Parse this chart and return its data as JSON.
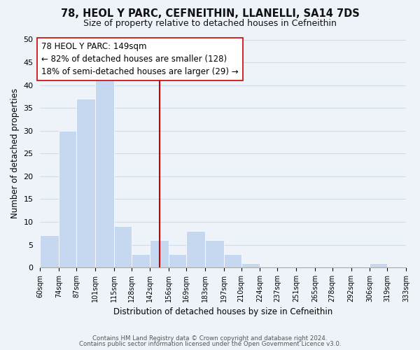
{
  "title": "78, HEOL Y PARC, CEFNEITHIN, LLANELLI, SA14 7DS",
  "subtitle": "Size of property relative to detached houses in Cefneithin",
  "xlabel": "Distribution of detached houses by size in Cefneithin",
  "ylabel": "Number of detached properties",
  "bin_edges": [
    60,
    74,
    87,
    101,
    115,
    128,
    142,
    156,
    169,
    183,
    197,
    210,
    224,
    237,
    251,
    265,
    278,
    292,
    306,
    319,
    333
  ],
  "bin_labels": [
    "60sqm",
    "74sqm",
    "87sqm",
    "101sqm",
    "115sqm",
    "128sqm",
    "142sqm",
    "156sqm",
    "169sqm",
    "183sqm",
    "197sqm",
    "210sqm",
    "224sqm",
    "237sqm",
    "251sqm",
    "265sqm",
    "278sqm",
    "292sqm",
    "306sqm",
    "319sqm",
    "333sqm"
  ],
  "counts": [
    7,
    30,
    37,
    41,
    9,
    3,
    6,
    3,
    8,
    6,
    3,
    1,
    0,
    0,
    0,
    0,
    0,
    0,
    1,
    0
  ],
  "bar_color": "#c5d8f0",
  "bar_edge_color": "#ffffff",
  "property_value": 149,
  "vline_color": "#cc0000",
  "annotation_line1": "78 HEOL Y PARC: 149sqm",
  "annotation_line2": "← 82% of detached houses are smaller (128)",
  "annotation_line3": "18% of semi-detached houses are larger (29) →",
  "annotation_box_color": "#ffffff",
  "annotation_box_edge": "#cc0000",
  "ylim": [
    0,
    50
  ],
  "yticks": [
    0,
    5,
    10,
    15,
    20,
    25,
    30,
    35,
    40,
    45,
    50
  ],
  "grid_color": "#d0dce8",
  "footer1": "Contains HM Land Registry data © Crown copyright and database right 2024.",
  "footer2": "Contains public sector information licensed under the Open Government Licence v3.0.",
  "bg_color": "#eef3fa",
  "title_fontsize": 10.5,
  "subtitle_fontsize": 9,
  "annotation_fontsize": 8.5
}
